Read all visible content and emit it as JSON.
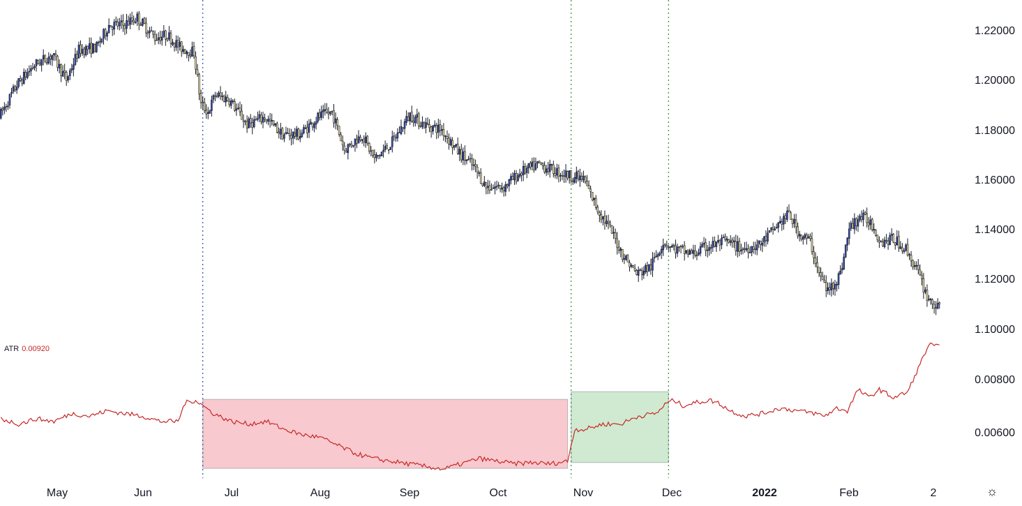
{
  "colors": {
    "up_body": "#3a4fb8",
    "down_body": "#f2e3a6",
    "wick": "#131722",
    "atr_line": "#c62828",
    "red_zone": "#f6b7bd",
    "green_zone": "#bfe3c0",
    "blue_marker": "#2a4b9b",
    "green_marker": "#2e8b3a"
  },
  "atr_legend": {
    "name": "ATR",
    "value": "0.00920"
  },
  "settings_icon": "gear-icon",
  "chart_data": [
    {
      "type": "candlestick",
      "symbol": "",
      "x_labels": [
        "May",
        "Jun",
        "Jul",
        "Aug",
        "Sep",
        "Oct",
        "Nov",
        "Dec",
        "2022",
        "Feb",
        "2"
      ],
      "y_ticks": [
        "1.22000",
        "1.20000",
        "1.18000",
        "1.16000",
        "1.14000",
        "1.12000",
        "1.10000"
      ],
      "ylim": [
        1.0965,
        1.2265
      ],
      "anchors": [
        [
          0,
          1.185
        ],
        [
          10,
          1.198
        ],
        [
          20,
          1.206
        ],
        [
          30,
          1.21
        ],
        [
          38,
          1.2
        ],
        [
          45,
          1.212
        ],
        [
          55,
          1.213
        ],
        [
          62,
          1.222
        ],
        [
          70,
          1.222
        ],
        [
          78,
          1.225
        ],
        [
          88,
          1.217
        ],
        [
          95,
          1.218
        ],
        [
          102,
          1.213
        ],
        [
          110,
          1.211
        ],
        [
          114,
          1.19
        ],
        [
          118,
          1.187
        ],
        [
          122,
          1.194
        ],
        [
          130,
          1.192
        ],
        [
          140,
          1.182
        ],
        [
          150,
          1.185
        ],
        [
          160,
          1.178
        ],
        [
          170,
          1.178
        ],
        [
          180,
          1.185
        ],
        [
          188,
          1.187
        ],
        [
          195,
          1.172
        ],
        [
          205,
          1.178
        ],
        [
          212,
          1.168
        ],
        [
          222,
          1.175
        ],
        [
          232,
          1.186
        ],
        [
          240,
          1.182
        ],
        [
          250,
          1.18
        ],
        [
          258,
          1.172
        ],
        [
          268,
          1.165
        ],
        [
          275,
          1.157
        ],
        [
          285,
          1.157
        ],
        [
          295,
          1.163
        ],
        [
          305,
          1.166
        ],
        [
          315,
          1.163
        ],
        [
          320,
          1.162
        ],
        [
          330,
          1.16
        ],
        [
          338,
          1.148
        ],
        [
          345,
          1.14
        ],
        [
          352,
          1.13
        ],
        [
          360,
          1.122
        ],
        [
          368,
          1.125
        ],
        [
          375,
          1.135
        ],
        [
          382,
          1.132
        ],
        [
          392,
          1.13
        ],
        [
          400,
          1.133
        ],
        [
          410,
          1.135
        ],
        [
          420,
          1.132
        ],
        [
          430,
          1.134
        ],
        [
          440,
          1.142
        ],
        [
          446,
          1.146
        ],
        [
          452,
          1.138
        ],
        [
          458,
          1.135
        ],
        [
          463,
          1.122
        ],
        [
          468,
          1.115
        ],
        [
          475,
          1.122
        ],
        [
          480,
          1.14
        ],
        [
          486,
          1.145
        ],
        [
          492,
          1.143
        ],
        [
          498,
          1.135
        ],
        [
          505,
          1.136
        ],
        [
          512,
          1.132
        ],
        [
          518,
          1.124
        ],
        [
          524,
          1.113
        ],
        [
          530,
          1.108
        ]
      ]
    },
    {
      "type": "line",
      "name": "ATR",
      "last_value": 0.0092,
      "y_ticks": [
        "0.00800",
        "0.00600"
      ],
      "ylim": [
        0.00455,
        0.00985
      ],
      "anchors": [
        [
          0,
          0.0065
        ],
        [
          10,
          0.0063
        ],
        [
          20,
          0.0065
        ],
        [
          30,
          0.0064
        ],
        [
          40,
          0.0067
        ],
        [
          50,
          0.0066
        ],
        [
          60,
          0.0068
        ],
        [
          70,
          0.0067
        ],
        [
          80,
          0.0066
        ],
        [
          90,
          0.0064
        ],
        [
          100,
          0.0064
        ],
        [
          104,
          0.0071
        ],
        [
          110,
          0.0072
        ],
        [
          120,
          0.0067
        ],
        [
          130,
          0.0064
        ],
        [
          140,
          0.0063
        ],
        [
          150,
          0.0064
        ],
        [
          160,
          0.0061
        ],
        [
          170,
          0.0059
        ],
        [
          180,
          0.0058
        ],
        [
          190,
          0.0055
        ],
        [
          200,
          0.0052
        ],
        [
          210,
          0.005
        ],
        [
          220,
          0.0049
        ],
        [
          230,
          0.0048
        ],
        [
          240,
          0.0047
        ],
        [
          250,
          0.0046
        ],
        [
          260,
          0.0048
        ],
        [
          270,
          0.005
        ],
        [
          280,
          0.0049
        ],
        [
          290,
          0.0048
        ],
        [
          300,
          0.00485
        ],
        [
          310,
          0.0048
        ],
        [
          320,
          0.0049
        ],
        [
          324,
          0.0061
        ],
        [
          330,
          0.0061
        ],
        [
          340,
          0.0063
        ],
        [
          350,
          0.0063
        ],
        [
          360,
          0.0066
        ],
        [
          370,
          0.0067
        ],
        [
          376,
          0.0071
        ],
        [
          380,
          0.0072
        ],
        [
          385,
          0.007
        ],
        [
          392,
          0.0071
        ],
        [
          400,
          0.0072
        ],
        [
          405,
          0.0071
        ],
        [
          412,
          0.0068
        ],
        [
          420,
          0.0066
        ],
        [
          430,
          0.0067
        ],
        [
          440,
          0.0069
        ],
        [
          450,
          0.0068
        ],
        [
          460,
          0.0067
        ],
        [
          465,
          0.0066
        ],
        [
          472,
          0.0069
        ],
        [
          478,
          0.0068
        ],
        [
          484,
          0.0076
        ],
        [
          490,
          0.0073
        ],
        [
          496,
          0.0076
        ],
        [
          504,
          0.0073
        ],
        [
          512,
          0.0075
        ],
        [
          518,
          0.0084
        ],
        [
          524,
          0.0093
        ],
        [
          530,
          0.0092
        ]
      ]
    }
  ],
  "annotations": {
    "vertical_markers": [
      {
        "type": "dotted",
        "color": "blue",
        "at_bar": 114
      },
      {
        "type": "dotted",
        "color": "green",
        "at_bar": 322
      },
      {
        "type": "dotted",
        "color": "green",
        "at_bar": 377
      }
    ],
    "zones": [
      {
        "color": "red",
        "from_bar": 114,
        "to_bar": 320,
        "atr_low": 0.00463,
        "atr_high": 0.00723
      },
      {
        "color": "green",
        "from_bar": 322,
        "to_bar": 377,
        "atr_low": 0.00485,
        "atr_high": 0.00752
      }
    ]
  }
}
